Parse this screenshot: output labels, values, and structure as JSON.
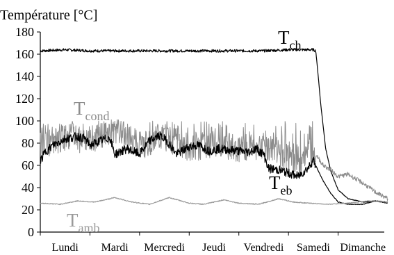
{
  "chart_data": {
    "type": "line",
    "ylabel": "Température [°C]",
    "ylim": [
      0,
      180
    ],
    "yticks": [
      0,
      20,
      40,
      60,
      80,
      100,
      120,
      140,
      160,
      180
    ],
    "xlim": [
      0,
      7
    ],
    "categories": [
      "Lundi",
      "Mardi",
      "Mercredi",
      "Jeudi",
      "Vendredi",
      "Samedi",
      "Dimanche"
    ],
    "grid": false,
    "legend": "none",
    "series": [
      {
        "name": "T",
        "subscript": "ch",
        "color": "#000000",
        "points": [
          [
            0,
            163
          ],
          [
            0.5,
            164
          ],
          [
            1,
            163
          ],
          [
            1.5,
            163
          ],
          [
            2,
            163
          ],
          [
            2.5,
            163
          ],
          [
            3,
            163
          ],
          [
            3.5,
            163
          ],
          [
            4,
            163
          ],
          [
            4.5,
            163
          ],
          [
            5,
            164
          ],
          [
            5.5,
            164
          ],
          [
            5.55,
            163
          ],
          [
            5.6,
            140
          ],
          [
            5.65,
            115
          ],
          [
            5.7,
            95
          ],
          [
            5.75,
            75
          ],
          [
            5.85,
            55
          ],
          [
            6.0,
            38
          ],
          [
            6.2,
            30
          ],
          [
            6.5,
            27
          ],
          [
            6.75,
            28
          ],
          [
            7,
            27
          ]
        ]
      },
      {
        "name": "T",
        "subscript": "cond",
        "color": "#8c8c8c",
        "points": [
          [
            0,
            80
          ],
          [
            0.5,
            88
          ],
          [
            1,
            85
          ],
          [
            1.5,
            95
          ],
          [
            2,
            80
          ],
          [
            2.5,
            88
          ],
          [
            3,
            78
          ],
          [
            3.5,
            82
          ],
          [
            4,
            78
          ],
          [
            4.5,
            80
          ],
          [
            5,
            68
          ],
          [
            5.2,
            62
          ],
          [
            5.4,
            75
          ],
          [
            5.55,
            70
          ],
          [
            5.7,
            60
          ],
          [
            5.85,
            56
          ],
          [
            6.0,
            50
          ],
          [
            6.2,
            52
          ],
          [
            6.5,
            44
          ],
          [
            6.75,
            36
          ],
          [
            7,
            30
          ]
        ]
      },
      {
        "name": "T",
        "subscript": "eb",
        "color": "#000000",
        "points": [
          [
            0,
            64
          ],
          [
            0.1,
            72
          ],
          [
            0.25,
            78
          ],
          [
            0.5,
            84
          ],
          [
            0.75,
            86
          ],
          [
            0.9,
            84
          ],
          [
            1,
            78
          ],
          [
            1.2,
            82
          ],
          [
            1.4,
            85
          ],
          [
            1.5,
            70
          ],
          [
            1.75,
            75
          ],
          [
            2,
            70
          ],
          [
            2.2,
            82
          ],
          [
            2.4,
            87
          ],
          [
            2.55,
            82
          ],
          [
            2.75,
            70
          ],
          [
            3,
            77
          ],
          [
            3.2,
            78
          ],
          [
            3.4,
            73
          ],
          [
            3.6,
            75
          ],
          [
            3.8,
            74
          ],
          [
            4,
            73
          ],
          [
            4.2,
            72
          ],
          [
            4.35,
            75
          ],
          [
            4.5,
            70
          ],
          [
            4.6,
            57
          ],
          [
            4.8,
            56
          ],
          [
            5.0,
            53
          ],
          [
            5.2,
            50
          ],
          [
            5.4,
            58
          ],
          [
            5.5,
            65
          ],
          [
            5.6,
            55
          ],
          [
            5.7,
            46
          ],
          [
            5.85,
            35
          ],
          [
            6.0,
            27
          ],
          [
            6.2,
            25
          ],
          [
            6.5,
            25
          ],
          [
            6.75,
            28
          ],
          [
            7,
            26
          ]
        ]
      },
      {
        "name": "T",
        "subscript": "amb",
        "color": "#9a9a9a",
        "points": [
          [
            0,
            26
          ],
          [
            0.4,
            25
          ],
          [
            0.75,
            28
          ],
          [
            1.1,
            27
          ],
          [
            1.5,
            31
          ],
          [
            1.85,
            27
          ],
          [
            2.2,
            25
          ],
          [
            2.6,
            31
          ],
          [
            3,
            26
          ],
          [
            3.3,
            25
          ],
          [
            3.7,
            29
          ],
          [
            4,
            26
          ],
          [
            4.4,
            25
          ],
          [
            4.8,
            30
          ],
          [
            5.1,
            27
          ],
          [
            5.4,
            26
          ],
          [
            5.8,
            25
          ],
          [
            6.2,
            26
          ],
          [
            6.6,
            28
          ],
          [
            7,
            27
          ]
        ]
      }
    ]
  }
}
